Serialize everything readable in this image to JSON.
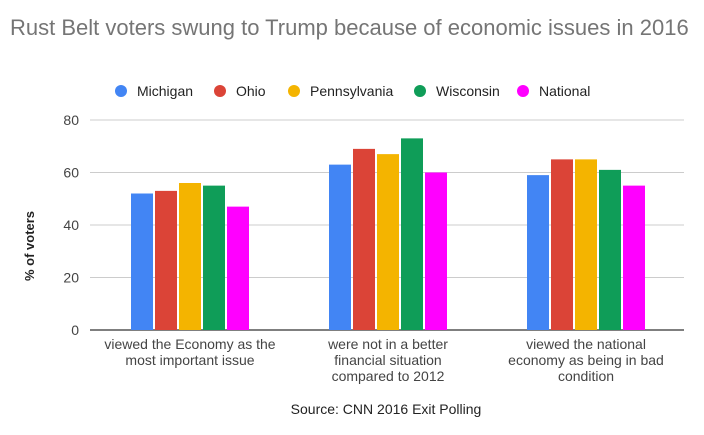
{
  "chart_data": {
    "type": "bar",
    "title": "Rust Belt voters swung to Trump because of economic issues in 2016",
    "ylabel": "% of voters",
    "xlabel": "",
    "source": "Source: CNN 2016 Exit Polling",
    "ylim": [
      0,
      80
    ],
    "yticks": [
      0,
      20,
      40,
      60,
      80
    ],
    "grid": true,
    "legend_position": "top",
    "categories": [
      [
        "viewed the Economy as the",
        "most important issue"
      ],
      [
        "were not in a better",
        "financial situation",
        "compared to 2012"
      ],
      [
        "viewed the national",
        "economy as being in bad",
        "condition"
      ]
    ],
    "series": [
      {
        "name": "Michigan",
        "color": "#4285f4",
        "values": [
          52,
          63,
          59
        ]
      },
      {
        "name": "Ohio",
        "color": "#db4437",
        "values": [
          53,
          69,
          65
        ]
      },
      {
        "name": "Pennsylvania",
        "color": "#f4b400",
        "values": [
          56,
          67,
          65
        ]
      },
      {
        "name": "Wisconsin",
        "color": "#0f9d58",
        "values": [
          55,
          73,
          61
        ]
      },
      {
        "name": "National",
        "color": "#ff00ff",
        "values": [
          47,
          60,
          55
        ]
      }
    ]
  }
}
